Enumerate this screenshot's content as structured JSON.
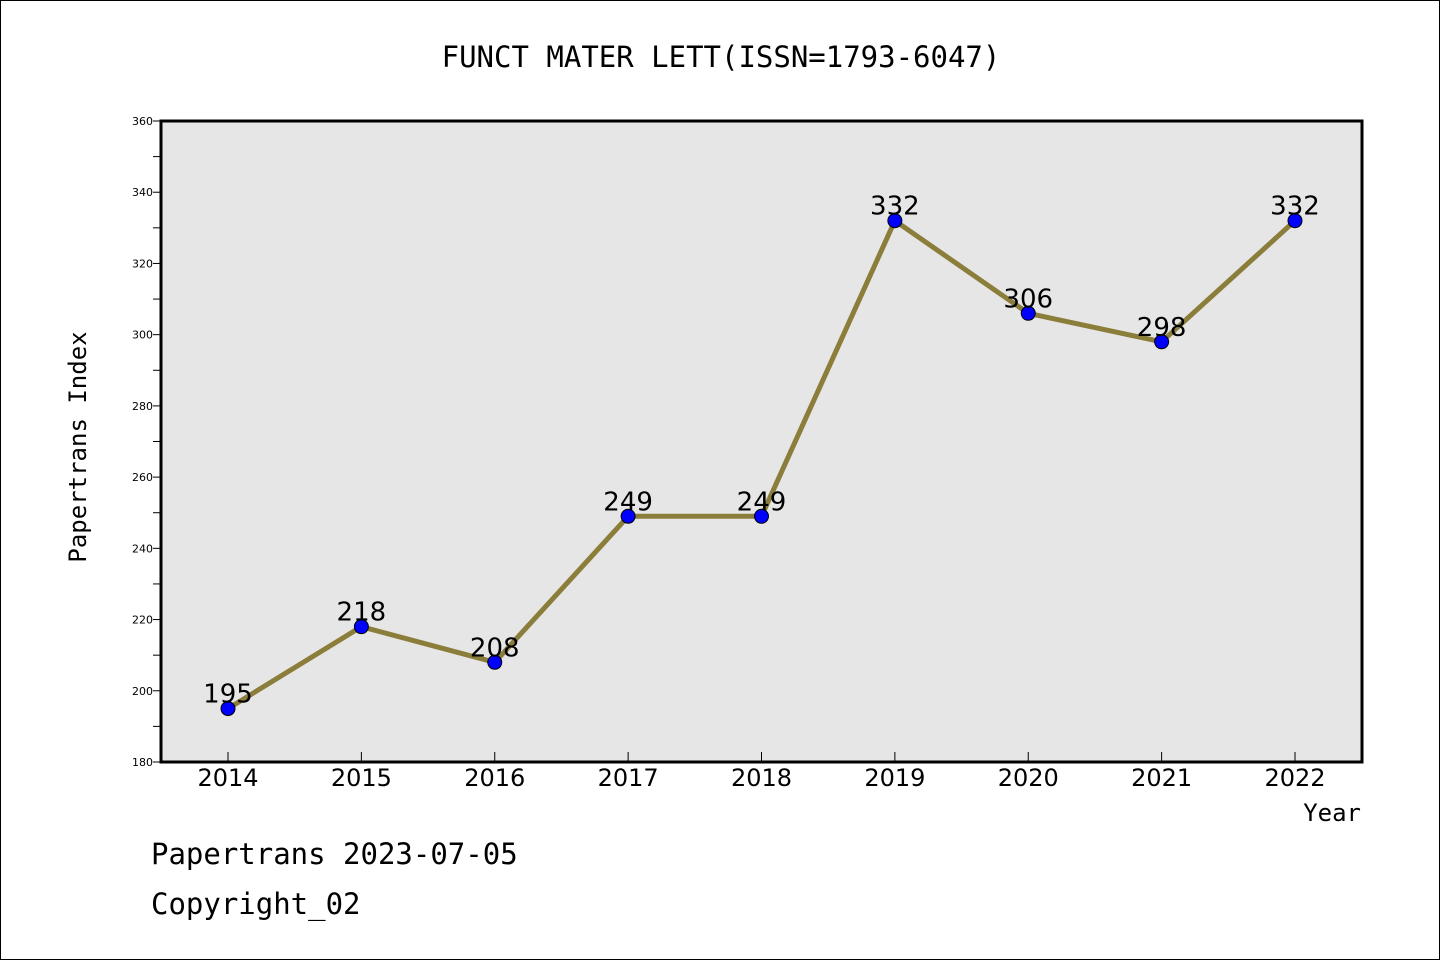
{
  "chart_data": {
    "type": "line",
    "title": "FUNCT MATER LETT(ISSN=1793-6047)",
    "xlabel": "Year",
    "ylabel": "Papertrans Index",
    "categories": [
      "2014",
      "2015",
      "2016",
      "2017",
      "2018",
      "2019",
      "2020",
      "2021",
      "2022"
    ],
    "values": [
      195,
      218,
      208,
      249,
      249,
      332,
      306,
      298,
      332
    ],
    "data_labels": [
      "195",
      "218",
      "208",
      "249",
      "249",
      "332",
      "306",
      "298",
      "332"
    ],
    "ylim": [
      180,
      360
    ],
    "yticks": [
      180,
      200,
      220,
      240,
      260,
      280,
      300,
      320,
      340,
      360
    ],
    "grid": false,
    "legend": "none",
    "colors": {
      "line": "#8b7d3a",
      "marker": "#0000ff",
      "plot_background": "#e6e6e6"
    }
  },
  "footer": {
    "line1": "Papertrans 2023-07-05",
    "line2": "Copyright_02"
  }
}
